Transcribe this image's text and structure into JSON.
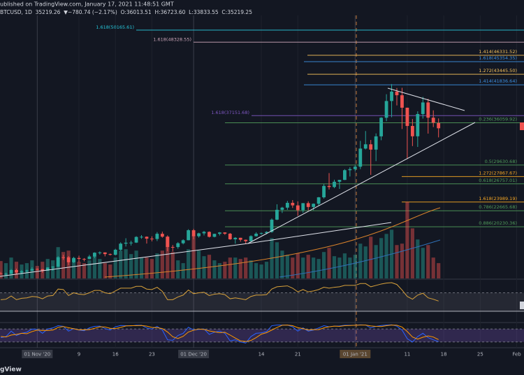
{
  "header": {
    "published": "ublished on TradingView.com, January 17, 2021 11:48:51 GMT",
    "symbol_line": "BTCUSD, 1D  35219.26  ▼−780.74 (−2.17%)  O:36013.51  H:36723.60  L:33833.55  C:35219.25",
    "logo": "gView"
  },
  "chart_data": {
    "type": "candlestick",
    "xlim": [
      -0.15,
      100.4
    ],
    "xticks": [
      {
        "value": 7,
        "label": "01 Nov '20"
      },
      {
        "value": 15,
        "label": "9"
      },
      {
        "value": 22,
        "label": "16"
      },
      {
        "value": 29,
        "label": "23"
      },
      {
        "value": 37,
        "label": "01 Dec '20"
      },
      {
        "value": 50,
        "label": "14"
      },
      {
        "value": 57,
        "label": "21"
      },
      {
        "value": 68,
        "label": "01 Jan '21"
      },
      {
        "value": 78,
        "label": "11"
      },
      {
        "value": 85,
        "label": "18"
      },
      {
        "value": 92,
        "label": "25"
      },
      {
        "value": 99,
        "label": "Feb"
      }
    ],
    "ylim": [
      12360,
      54745
    ],
    "up_color": "#26a69a",
    "down_color": "#ef5350",
    "ohlc": [
      [
        13120,
        13350,
        12950,
        13030
      ],
      [
        13030,
        13250,
        12800,
        13070
      ],
      [
        13070,
        13790,
        13030,
        13640
      ],
      [
        13640,
        13850,
        12950,
        13280
      ],
      [
        13280,
        13620,
        12990,
        13460
      ],
      [
        13460,
        13690,
        13200,
        13560
      ],
      [
        13560,
        14070,
        13440,
        13800
      ],
      [
        13800,
        13900,
        13620,
        13760
      ],
      [
        13760,
        13820,
        13220,
        13550
      ],
      [
        13550,
        14070,
        13530,
        14030
      ],
      [
        14030,
        14230,
        13540,
        14150
      ],
      [
        14150,
        15740,
        14090,
        15590
      ],
      [
        15590,
        15960,
        15190,
        15580
      ],
      [
        15580,
        15770,
        14400,
        14830
      ],
      [
        14830,
        15650,
        14710,
        15480
      ],
      [
        15480,
        15830,
        14830,
        15330
      ],
      [
        15330,
        15460,
        14960,
        15300
      ],
      [
        15300,
        15950,
        15280,
        15700
      ],
      [
        15700,
        16340,
        15460,
        16280
      ],
      [
        16280,
        16480,
        15990,
        16320
      ],
      [
        16320,
        16330,
        15720,
        16070
      ],
      [
        16070,
        16150,
        15860,
        15960
      ],
      [
        15960,
        16880,
        15870,
        16730
      ],
      [
        16730,
        17860,
        16560,
        17660
      ],
      [
        17660,
        18480,
        17220,
        17800
      ],
      [
        17800,
        18100,
        17370,
        17820
      ],
      [
        17820,
        18790,
        17760,
        18680
      ],
      [
        18680,
        18960,
        18400,
        18710
      ],
      [
        18710,
        18760,
        17670,
        18420
      ],
      [
        18420,
        18770,
        18000,
        18370
      ],
      [
        18370,
        19420,
        18050,
        19160
      ],
      [
        19160,
        19480,
        18570,
        18720
      ],
      [
        18720,
        18920,
        16500,
        17150
      ],
      [
        17150,
        17450,
        16450,
        17140
      ],
      [
        17140,
        17880,
        16890,
        17720
      ],
      [
        17720,
        18320,
        17550,
        18180
      ],
      [
        18180,
        19850,
        18160,
        19700
      ],
      [
        19700,
        19920,
        18320,
        18790
      ],
      [
        18790,
        19320,
        18580,
        19230
      ],
      [
        19230,
        19590,
        18910,
        19450
      ],
      [
        19450,
        19520,
        18600,
        18700
      ],
      [
        18700,
        19170,
        18620,
        19150
      ],
      [
        19150,
        19420,
        18900,
        19360
      ],
      [
        19360,
        19390,
        19000,
        19170
      ],
      [
        19170,
        19280,
        18250,
        18320
      ],
      [
        18320,
        18650,
        17650,
        18550
      ],
      [
        18550,
        18560,
        17960,
        18250
      ],
      [
        18250,
        18280,
        17600,
        18030
      ],
      [
        18030,
        18930,
        18020,
        18800
      ],
      [
        18800,
        19400,
        18720,
        19170
      ],
      [
        19170,
        19340,
        19020,
        19270
      ],
      [
        19270,
        19540,
        19090,
        19440
      ],
      [
        19440,
        21500,
        19310,
        21310
      ],
      [
        21310,
        23650,
        21230,
        22810
      ],
      [
        22810,
        23260,
        22330,
        23140
      ],
      [
        23140,
        24170,
        22800,
        23870
      ],
      [
        23870,
        24290,
        23090,
        23480
      ],
      [
        23480,
        24100,
        21900,
        22750
      ],
      [
        22750,
        23830,
        22370,
        23820
      ],
      [
        23820,
        24100,
        22720,
        23240
      ],
      [
        23240,
        23780,
        22740,
        23730
      ],
      [
        23730,
        24760,
        23470,
        24710
      ],
      [
        24710,
        26720,
        24520,
        26440
      ],
      [
        26440,
        28400,
        25900,
        26280
      ],
      [
        26280,
        27390,
        26100,
        27080
      ],
      [
        27080,
        27370,
        25990,
        27360
      ],
      [
        27360,
        28990,
        27330,
        28840
      ],
      [
        28840,
        29300,
        27880,
        29000
      ],
      [
        29000,
        29600,
        28700,
        29370
      ],
      [
        29370,
        33300,
        29000,
        32130
      ],
      [
        32130,
        34800,
        32000,
        32780
      ],
      [
        32780,
        33440,
        28130,
        31970
      ],
      [
        31970,
        34440,
        30220,
        33990
      ],
      [
        33990,
        36900,
        33400,
        36820
      ],
      [
        36820,
        40400,
        36300,
        39370
      ],
      [
        39370,
        41950,
        36900,
        40800
      ],
      [
        40800,
        41350,
        38700,
        40250
      ],
      [
        40250,
        41380,
        35110,
        38350
      ],
      [
        38350,
        38360,
        30550,
        35570
      ],
      [
        35570,
        36630,
        32510,
        34000
      ],
      [
        34000,
        37800,
        32380,
        37390
      ],
      [
        37390,
        40000,
        36700,
        39150
      ],
      [
        39150,
        39700,
        34410,
        36830
      ],
      [
        36830,
        37950,
        35400,
        36070
      ],
      [
        36013.51,
        36723.6,
        33833.55,
        35219.25
      ]
    ],
    "volume": {
      "ylim": [
        0,
        400
      ],
      "values": [
        25,
        22,
        30,
        24,
        20,
        22,
        26,
        18,
        24,
        28,
        26,
        45,
        38,
        40,
        28,
        24,
        22,
        26,
        32,
        28,
        22,
        20,
        30,
        40,
        42,
        35,
        40,
        30,
        30,
        28,
        36,
        40,
        60,
        38,
        26,
        22,
        42,
        62,
        40,
        32,
        34,
        26,
        22,
        24,
        30,
        30,
        28,
        30,
        26,
        22,
        20,
        24,
        58,
        52,
        40,
        34,
        30,
        36,
        30,
        34,
        30,
        28,
        38,
        44,
        32,
        30,
        36,
        30,
        34,
        50,
        46,
        60,
        48,
        58,
        64,
        70,
        48,
        50,
        110,
        72,
        56,
        44,
        48,
        30,
        22
      ]
    },
    "fib_levels": [
      {
        "label": "1.618(50165.61)",
        "value": 50165.61,
        "color": "#26c6da"
      },
      {
        "label": "1.618(48328.55)",
        "value": 48328.55,
        "color": "#c9a3b6"
      },
      {
        "label": "1.414(46331.52)",
        "value": 46331.52,
        "color": "#f5c05a"
      },
      {
        "label": "1.618(45354.35)",
        "value": 45354.35,
        "color": "#3d8fe0"
      },
      {
        "label": "1.272(43445.50)",
        "value": 43445.5,
        "color": "#f5c05a"
      },
      {
        "label": "1.414(41836.64)",
        "value": 41836.64,
        "color": "#3d8fe0"
      },
      {
        "label": "1.618(37151.68)",
        "value": 37151.68,
        "color": "#7e57c2"
      },
      {
        "label": "0.236(36059.92)",
        "value": 36059.92,
        "color": "#4f9a5a"
      },
      {
        "label": "0.5(29630.68)",
        "value": 29630.68,
        "color": "#4f9a5a"
      },
      {
        "label": "1.272(27867.67)",
        "value": 27867.67,
        "color": "#f5a623"
      },
      {
        "label": "0.618(26757.01)",
        "value": 26757.01,
        "color": "#4f9a5a"
      },
      {
        "label": "1.618(23989.19)",
        "value": 23989.19,
        "color": "#f5a623"
      },
      {
        "label": "0.786(22665.68)",
        "value": 22665.68,
        "color": "#4f9a5a"
      },
      {
        "label": "0.886(20230.36)",
        "value": 20230.36,
        "color": "#4f9a5a"
      }
    ],
    "rsi": {
      "ylim": [
        10,
        95
      ],
      "bands": [
        70,
        30
      ],
      "color": "#d8a13a",
      "values": [
        55,
        56,
        63,
        55,
        58,
        59,
        62,
        61,
        57,
        63,
        64,
        78,
        77,
        64,
        70,
        67,
        66,
        70,
        75,
        75,
        70,
        68,
        74,
        80,
        80,
        80,
        84,
        84,
        78,
        77,
        82,
        73,
        55,
        55,
        61,
        65,
        76,
        68,
        70,
        71,
        64,
        67,
        68,
        66,
        57,
        59,
        57,
        55,
        62,
        65,
        65,
        66,
        78,
        83,
        84,
        85,
        80,
        72,
        77,
        72,
        74,
        77,
        82,
        80,
        82,
        83,
        86,
        86,
        86,
        90,
        90,
        83,
        86,
        89,
        91,
        92,
        88,
        76,
        62,
        56,
        65,
        69,
        59,
        56,
        52
      ]
    },
    "stochastic": {
      "ylim": [
        0,
        100
      ],
      "bands": [
        80,
        20
      ],
      "k_color": "#2962ff",
      "d_color": "#ff9800",
      "k": [
        40,
        45,
        70,
        50,
        60,
        65,
        80,
        78,
        60,
        80,
        85,
        95,
        92,
        70,
        82,
        75,
        72,
        85,
        92,
        93,
        82,
        75,
        90,
        96,
        95,
        94,
        97,
        97,
        85,
        80,
        92,
        75,
        30,
        28,
        50,
        60,
        88,
        75,
        78,
        80,
        55,
        65,
        70,
        60,
        25,
        30,
        20,
        15,
        45,
        60,
        62,
        68,
        95,
        98,
        98,
        98,
        90,
        70,
        85,
        70,
        75,
        85,
        95,
        90,
        93,
        94,
        97,
        97,
        97,
        99,
        98,
        85,
        92,
        96,
        98,
        99,
        93,
        75,
        35,
        20,
        45,
        60,
        40,
        30,
        22
      ],
      "d": [
        45,
        43,
        52,
        55,
        60,
        58,
        68,
        75,
        73,
        73,
        75,
        87,
        91,
        86,
        81,
        76,
        76,
        77,
        83,
        90,
        89,
        83,
        82,
        87,
        94,
        95,
        95,
        96,
        93,
        87,
        86,
        82,
        66,
        44,
        36,
        46,
        66,
        74,
        80,
        78,
        71,
        67,
        63,
        65,
        52,
        38,
        25,
        22,
        27,
        40,
        56,
        63,
        75,
        87,
        97,
        98,
        95,
        86,
        82,
        75,
        77,
        77,
        85,
        90,
        93,
        92,
        95,
        96,
        97,
        98,
        98,
        94,
        92,
        91,
        95,
        98,
        97,
        89,
        68,
        43,
        33,
        42,
        48,
        43,
        31
      ]
    }
  }
}
